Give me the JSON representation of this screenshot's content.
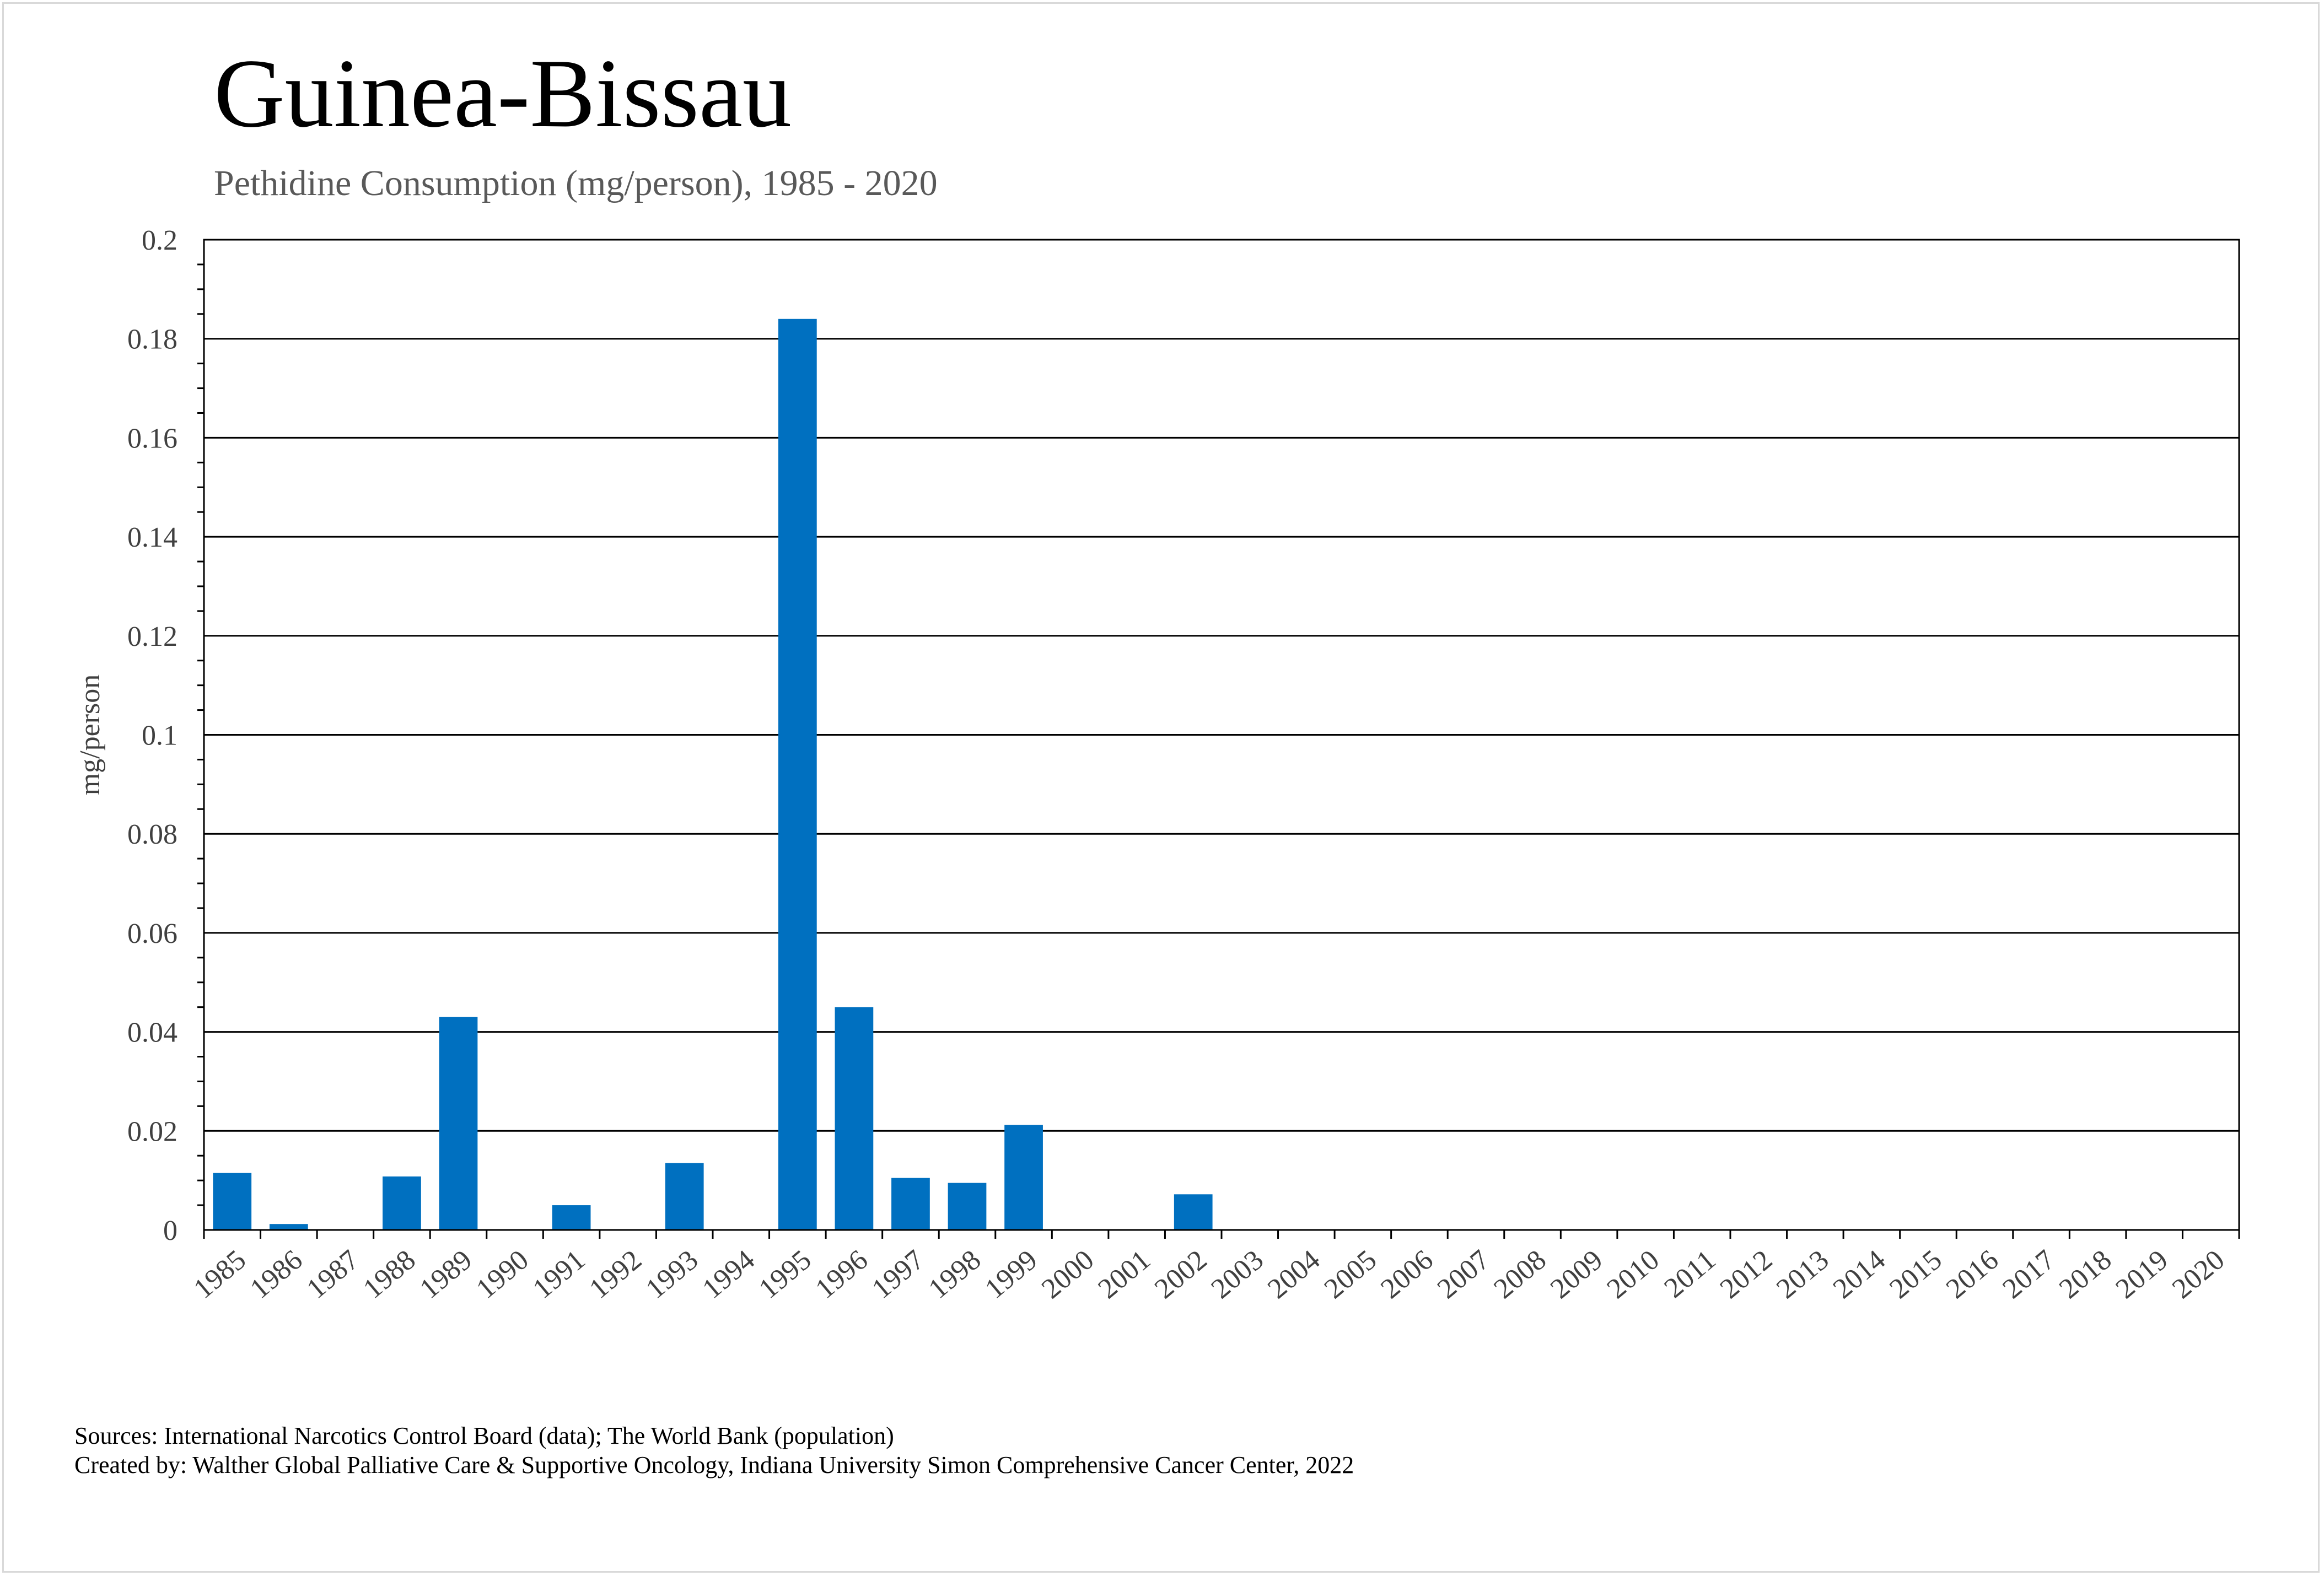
{
  "header": {
    "title": "Guinea-Bissau",
    "subtitle": "Pethidine Consumption (mg/person), 1985 - 2020"
  },
  "footer": {
    "sources": "Sources: International Narcotics Control Board (data); The World Bank (population)",
    "created_by": "Created by: Walther Global Palliative Care & Supportive Oncology, Indiana University Simon Comprehensive Cancer Center, 2022"
  },
  "colors": {
    "bar": "#0070C0",
    "gridline": "#000000",
    "axis_text": "#404040"
  },
  "chart_data": {
    "type": "bar",
    "title": "Guinea-Bissau",
    "subtitle": "Pethidine Consumption (mg/person), 1985 - 2020",
    "xlabel": "",
    "ylabel": "mg/person",
    "ylim": [
      0,
      0.2
    ],
    "yticks": [
      "0",
      "0.02",
      "0.04",
      "0.06",
      "0.08",
      "0.1",
      "0.12",
      "0.14",
      "0.16",
      "0.18",
      "0.2"
    ],
    "grid": true,
    "categories": [
      "1985",
      "1986",
      "1987",
      "1988",
      "1989",
      "1990",
      "1991",
      "1992",
      "1993",
      "1994",
      "1995",
      "1996",
      "1997",
      "1998",
      "1999",
      "2000",
      "2001",
      "2002",
      "2003",
      "2004",
      "2005",
      "2006",
      "2007",
      "2008",
      "2009",
      "2010",
      "2011",
      "2012",
      "2013",
      "2014",
      "2015",
      "2016",
      "2017",
      "2018",
      "2019",
      "2020"
    ],
    "values": [
      0.0115,
      0.0012,
      0,
      0.0108,
      0.043,
      0,
      0.005,
      0,
      0.0135,
      0,
      0.184,
      0.045,
      0.0105,
      0.0095,
      0.0212,
      0,
      0,
      0.0072,
      0,
      0,
      0,
      0,
      0,
      0,
      0,
      0,
      0,
      0,
      0,
      0,
      0,
      0,
      0,
      0,
      0,
      0
    ]
  }
}
